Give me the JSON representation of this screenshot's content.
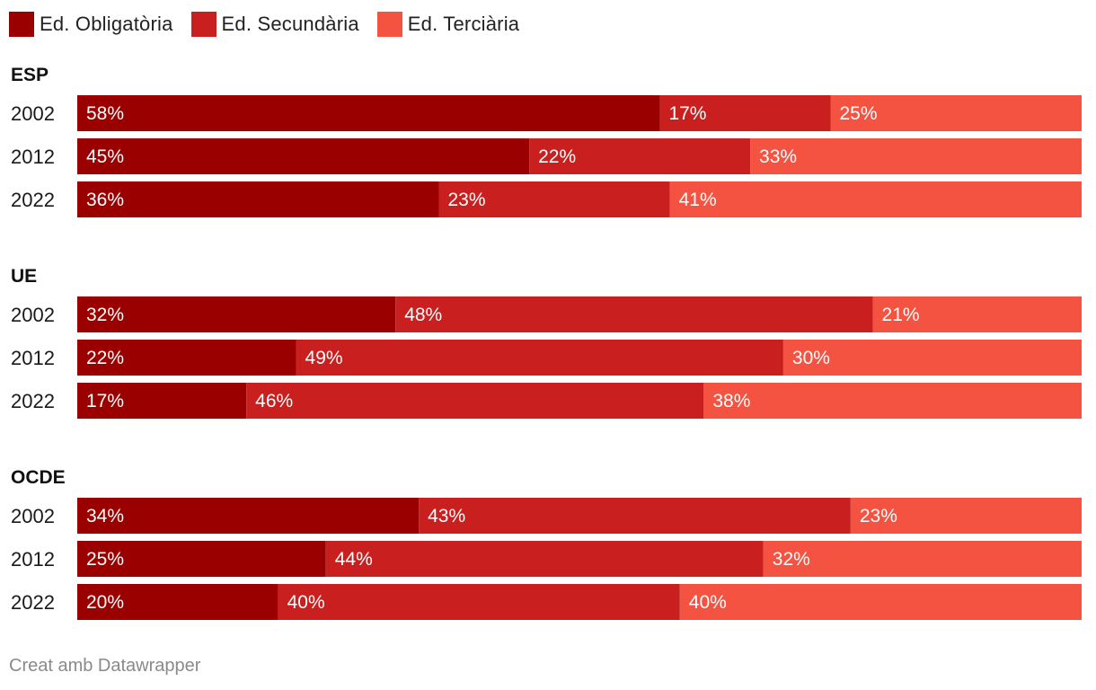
{
  "chart_data": {
    "type": "bar",
    "orientation": "horizontal",
    "stacked": true,
    "normalized": true,
    "unit": "%",
    "series": [
      {
        "name": "Ed. Obligatòria",
        "color": "#9b0000"
      },
      {
        "name": "Ed. Secundària",
        "color": "#c91f1f"
      },
      {
        "name": "Ed. Terciària",
        "color": "#f55342"
      }
    ],
    "groups": [
      {
        "title": "ESP",
        "rows": [
          {
            "year": "2002",
            "values": [
              58,
              17,
              25
            ]
          },
          {
            "year": "2012",
            "values": [
              45,
              22,
              33
            ]
          },
          {
            "year": "2022",
            "values": [
              36,
              23,
              41
            ]
          }
        ]
      },
      {
        "title": "UE",
        "rows": [
          {
            "year": "2002",
            "values": [
              32,
              48,
              21
            ]
          },
          {
            "year": "2012",
            "values": [
              22,
              49,
              30
            ]
          },
          {
            "year": "2022",
            "values": [
              17,
              46,
              38
            ]
          }
        ]
      },
      {
        "title": "OCDE",
        "rows": [
          {
            "year": "2002",
            "values": [
              34,
              43,
              23
            ]
          },
          {
            "year": "2012",
            "values": [
              25,
              44,
              32
            ]
          },
          {
            "year": "2022",
            "values": [
              20,
              40,
              40
            ]
          }
        ]
      }
    ],
    "legend_position": "top-left"
  },
  "footer": {
    "credit": "Creat amb Datawrapper"
  }
}
